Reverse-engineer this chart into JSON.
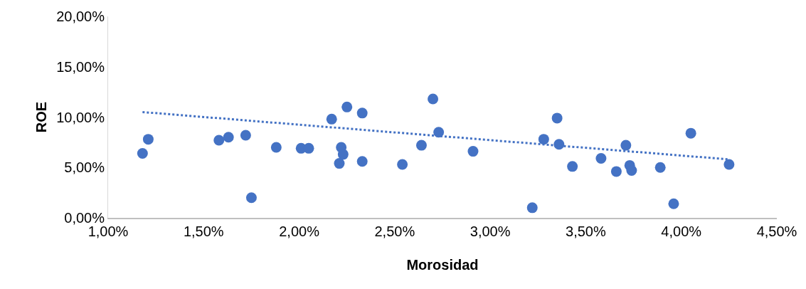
{
  "chart_data": {
    "type": "scatter",
    "xlabel": "Morosidad",
    "ylabel": "ROE",
    "x": [
      1.18,
      1.21,
      1.58,
      1.63,
      1.72,
      1.75,
      1.88,
      2.01,
      2.05,
      2.17,
      2.21,
      2.22,
      2.23,
      2.25,
      2.33,
      2.33,
      2.54,
      2.64,
      2.7,
      2.73,
      2.91,
      3.22,
      3.28,
      3.35,
      3.36,
      3.43,
      3.58,
      3.66,
      3.71,
      3.73,
      3.74,
      3.89,
      3.96,
      4.05,
      4.25
    ],
    "series": [
      {
        "type": "scatter",
        "color": "#4472c4",
        "marker": "circle",
        "values": [
          6.4,
          7.8,
          7.7,
          8.0,
          8.2,
          2.0,
          7.0,
          6.9,
          6.9,
          9.8,
          5.4,
          7.0,
          6.3,
          11.0,
          10.4,
          5.6,
          5.3,
          7.2,
          11.8,
          8.5,
          6.6,
          1.0,
          7.8,
          9.9,
          7.3,
          5.1,
          5.9,
          4.6,
          7.2,
          5.2,
          4.7,
          5.0,
          1.4,
          8.4,
          5.3
        ]
      },
      {
        "type": "line",
        "color": "#4472c4",
        "line_style": "dotted",
        "marker": "none",
        "x": [
          1.18,
          4.25
        ],
        "values": [
          10.5,
          5.8
        ]
      }
    ],
    "xlim": [
      1,
      4.5
    ],
    "xticks": [
      {
        "value": 1,
        "label": "1,00%"
      },
      {
        "value": 1.5,
        "label": "1,50%"
      },
      {
        "value": 2,
        "label": "2,00%"
      },
      {
        "value": 2.5,
        "label": "2,50%"
      },
      {
        "value": 3,
        "label": "3,00%"
      },
      {
        "value": 3.5,
        "label": "3,50%"
      },
      {
        "value": 4,
        "label": "4,00%"
      },
      {
        "value": 4.5,
        "label": "4,50%"
      }
    ],
    "ylim": [
      0,
      20
    ],
    "yticks": [
      {
        "value": 0,
        "label": "0,00%"
      },
      {
        "value": 5,
        "label": "5,00%"
      },
      {
        "value": 10,
        "label": "10,00%"
      },
      {
        "value": 15,
        "label": "15,00%"
      },
      {
        "value": 20,
        "label": "20,00%"
      }
    ],
    "grid": false
  }
}
